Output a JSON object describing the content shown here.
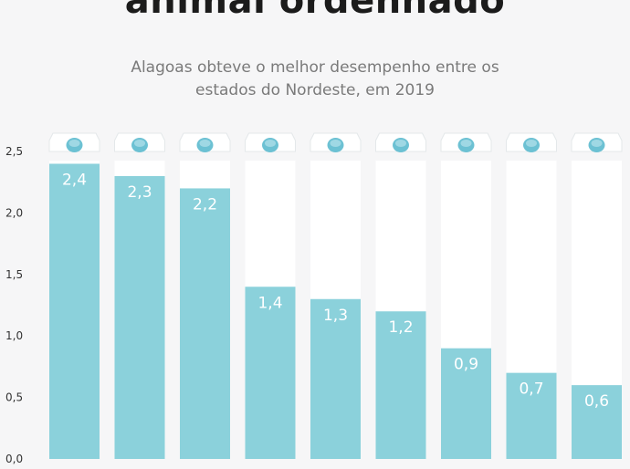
{
  "header": {
    "title": "animal ordenhado",
    "subtitle_line1": "Alagoas obteve o melhor desempenho entre os",
    "subtitle_line2": "estados do Nordeste, em 2019"
  },
  "colors": {
    "fill": "#8bd1db",
    "carton": "#ffffff",
    "cap": "#6cc1d3",
    "background": "#f6f6f7"
  },
  "chart_data": {
    "type": "bar",
    "values": [
      2.4,
      2.3,
      2.2,
      1.4,
      1.3,
      1.2,
      0.9,
      0.7,
      0.6
    ],
    "labels": [
      "2,4",
      "2,3",
      "2,2",
      "1,4",
      "1,3",
      "1,2",
      "0,9",
      "0,7",
      "0,6"
    ],
    "y_ticks": [
      "0,0",
      "0,5",
      "1,0",
      "1,5",
      "2,0",
      "2,5"
    ],
    "ylim": [
      0,
      2.5
    ],
    "grid": false,
    "legend": "none"
  }
}
